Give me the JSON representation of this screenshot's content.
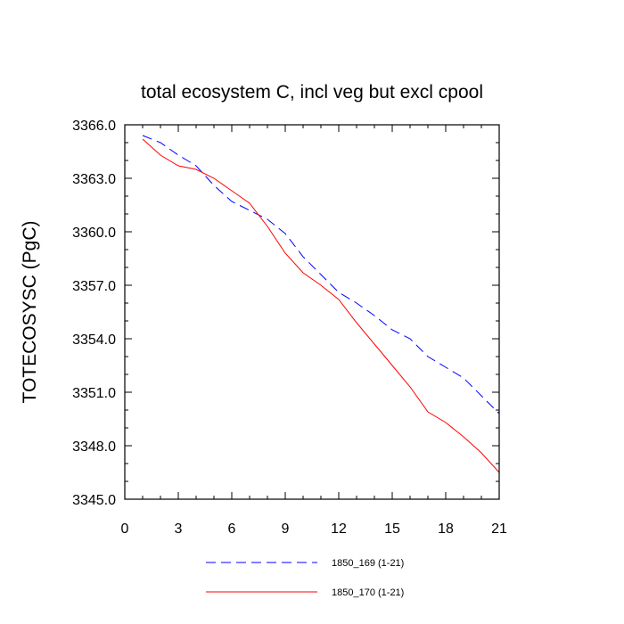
{
  "chart_data": {
    "type": "line",
    "title": "total ecosystem C, incl veg but excl cpool",
    "xlabel": "",
    "ylabel": "TOTECOSYSC  (PgC)",
    "xlim": [
      0,
      21
    ],
    "ylim": [
      3345.0,
      3366.0
    ],
    "xticks": [
      0,
      3,
      6,
      9,
      12,
      15,
      18,
      21
    ],
    "xtick_labels": [
      "0",
      "3",
      "6",
      "9",
      "12",
      "15",
      "18",
      "21"
    ],
    "yticks": [
      3345.0,
      3348.0,
      3351.0,
      3354.0,
      3357.0,
      3360.0,
      3363.0,
      3366.0
    ],
    "ytick_labels": [
      "3345.0",
      "3348.0",
      "3351.0",
      "3354.0",
      "3357.0",
      "3360.0",
      "3363.0",
      "3366.0"
    ],
    "x": [
      1,
      2,
      3,
      4,
      5,
      6,
      7,
      8,
      9,
      10,
      11,
      12,
      13,
      14,
      15,
      16,
      17,
      18,
      19,
      20,
      21
    ],
    "series": [
      {
        "name": "1850_169 (1-21)",
        "color": "#0000ff",
        "dash": "dashed",
        "values": [
          3365.4,
          3365.0,
          3364.3,
          3363.7,
          3362.6,
          3361.7,
          3361.2,
          3360.7,
          3359.9,
          3358.6,
          3357.6,
          3356.6,
          3356.0,
          3355.3,
          3354.5,
          3354.0,
          3353.0,
          3352.4,
          3351.8,
          3350.8,
          3349.8
        ]
      },
      {
        "name": "1850_170 (1-21)",
        "color": "#ff0000",
        "dash": "solid",
        "values": [
          3365.2,
          3364.3,
          3363.7,
          3363.5,
          3363.0,
          3362.3,
          3361.6,
          3360.3,
          3358.8,
          3357.7,
          3357.0,
          3356.2,
          3354.9,
          3353.7,
          3352.5,
          3351.3,
          3349.9,
          3349.3,
          3348.5,
          3347.6,
          3346.5
        ]
      }
    ],
    "grid": false,
    "legend_position": "bottom"
  }
}
